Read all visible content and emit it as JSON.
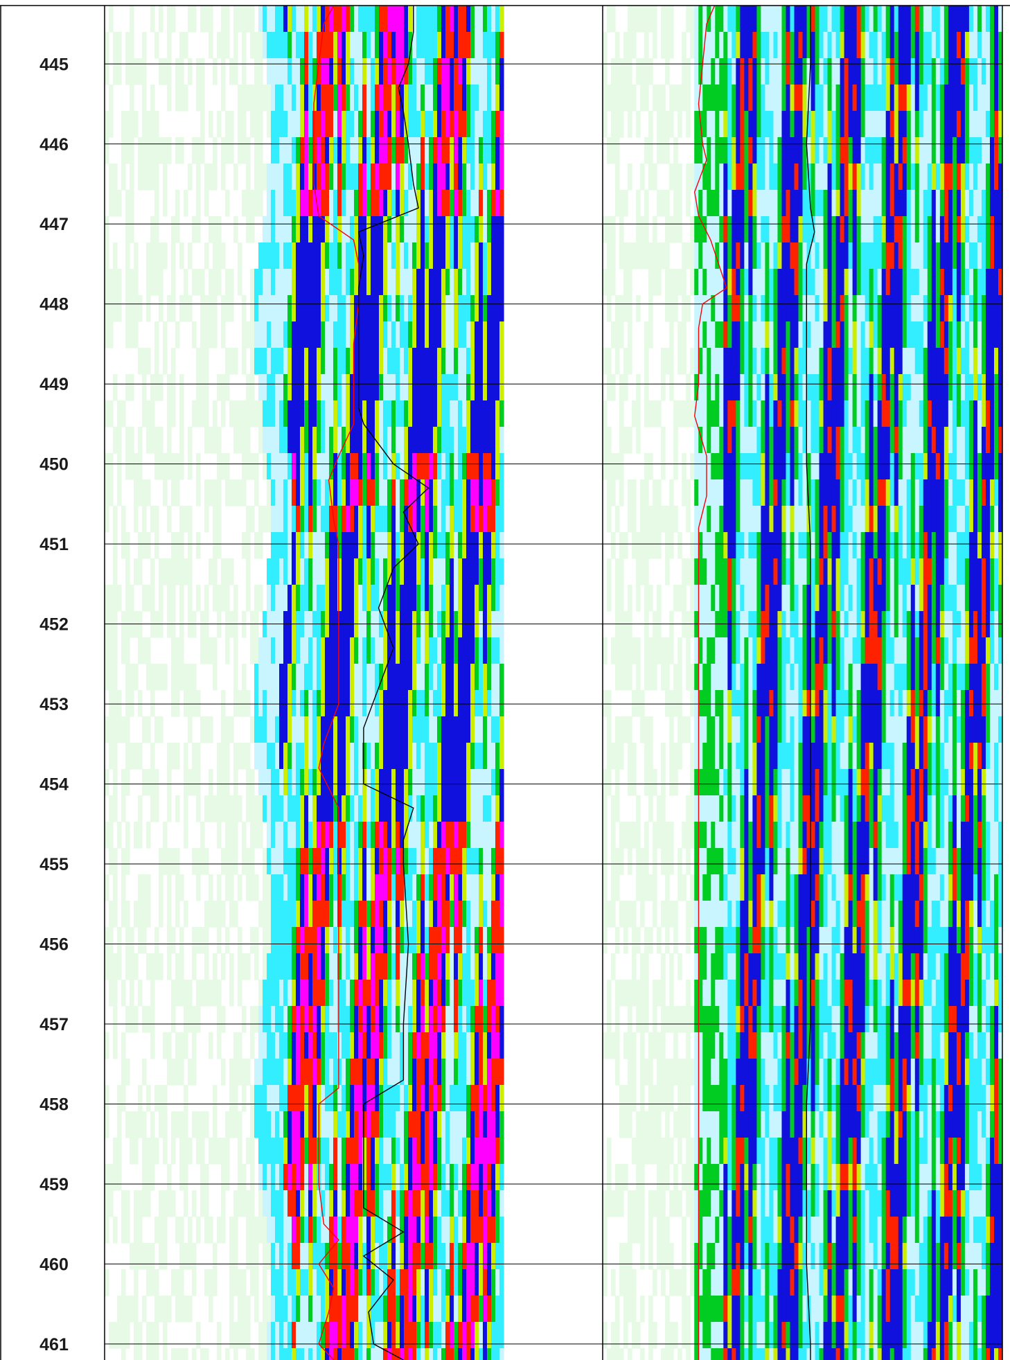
{
  "chart_data": {
    "type": "heatmap",
    "title": "",
    "xlabel": "",
    "ylabel": "",
    "depth_axis": {
      "range": [
        444.27,
        461.2
      ],
      "ticks": [
        445,
        446,
        447,
        448,
        449,
        450,
        451,
        452,
        453,
        454,
        455,
        456,
        457,
        458,
        459,
        460,
        461
      ],
      "tick_labels": [
        "445",
        "446",
        "447",
        "448",
        "449",
        "450",
        "451",
        "452",
        "453",
        "454",
        "455",
        "456",
        "457",
        "458",
        "459",
        "460",
        "461"
      ],
      "grid": true
    },
    "tracks": [
      {
        "name": "",
        "palette": [
          "#e6fae6",
          "#c8f5ff",
          "#33eeff",
          "#00cc22",
          "#ccee00",
          "#ff2200",
          "#ff00ff",
          "#1111dd"
        ],
        "curves": [
          {
            "color": "#ff0000",
            "points": [
              [
                444.27,
                0.46
              ],
              [
                444.5,
                0.44
              ],
              [
                445.0,
                0.43
              ],
              [
                445.5,
                0.42
              ],
              [
                446.0,
                0.42
              ],
              [
                446.5,
                0.42
              ],
              [
                446.9,
                0.43
              ],
              [
                447.2,
                0.5
              ],
              [
                447.5,
                0.51
              ],
              [
                448.0,
                0.51
              ],
              [
                448.5,
                0.5
              ],
              [
                449.0,
                0.5
              ],
              [
                449.5,
                0.5
              ],
              [
                449.9,
                0.47
              ],
              [
                450.2,
                0.45
              ],
              [
                450.7,
                0.46
              ],
              [
                451.0,
                0.47
              ],
              [
                451.5,
                0.47
              ],
              [
                452.0,
                0.47
              ],
              [
                452.5,
                0.47
              ],
              [
                453.0,
                0.47
              ],
              [
                453.5,
                0.44
              ],
              [
                453.8,
                0.43
              ],
              [
                454.3,
                0.47
              ],
              [
                455.0,
                0.47
              ],
              [
                456.0,
                0.47
              ],
              [
                457.0,
                0.47
              ],
              [
                457.8,
                0.47
              ],
              [
                458.0,
                0.43
              ],
              [
                458.5,
                0.43
              ],
              [
                459.0,
                0.43
              ],
              [
                459.5,
                0.44
              ],
              [
                459.7,
                0.47
              ],
              [
                460.0,
                0.43
              ],
              [
                460.3,
                0.46
              ],
              [
                460.6,
                0.45
              ],
              [
                461.0,
                0.43
              ],
              [
                461.2,
                0.46
              ]
            ]
          },
          {
            "color": "#000000",
            "points": [
              [
                444.27,
                0.62
              ],
              [
                444.6,
                0.62
              ],
              [
                445.0,
                0.61
              ],
              [
                445.3,
                0.59
              ],
              [
                445.6,
                0.6
              ],
              [
                446.0,
                0.61
              ],
              [
                446.5,
                0.62
              ],
              [
                446.8,
                0.63
              ],
              [
                447.1,
                0.51
              ],
              [
                447.4,
                0.52
              ],
              [
                447.8,
                0.51
              ],
              [
                448.8,
                0.51
              ],
              [
                449.3,
                0.51
              ],
              [
                449.5,
                0.52
              ],
              [
                450.0,
                0.58
              ],
              [
                450.3,
                0.65
              ],
              [
                450.6,
                0.6
              ],
              [
                451.0,
                0.63
              ],
              [
                451.3,
                0.58
              ],
              [
                451.8,
                0.55
              ],
              [
                452.3,
                0.58
              ],
              [
                452.8,
                0.55
              ],
              [
                453.3,
                0.52
              ],
              [
                453.7,
                0.52
              ],
              [
                454.0,
                0.52
              ],
              [
                454.3,
                0.62
              ],
              [
                454.7,
                0.6
              ],
              [
                455.0,
                0.6
              ],
              [
                456.0,
                0.61
              ],
              [
                457.0,
                0.6
              ],
              [
                457.7,
                0.6
              ],
              [
                458.0,
                0.52
              ],
              [
                458.5,
                0.52
              ],
              [
                459.0,
                0.52
              ],
              [
                459.3,
                0.52
              ],
              [
                459.6,
                0.6
              ],
              [
                459.9,
                0.52
              ],
              [
                460.2,
                0.58
              ],
              [
                460.6,
                0.53
              ],
              [
                461.0,
                0.54
              ],
              [
                461.2,
                0.6
              ]
            ]
          }
        ]
      },
      {
        "name": "",
        "palette": [
          "#e6fae6",
          "#c8f5ff",
          "#33eeff",
          "#00cc22",
          "#ccee00",
          "#ff2200",
          "#ff00ff",
          "#1111dd"
        ],
        "curves": [
          {
            "color": "#ff0000",
            "points": [
              [
                444.27,
                0.28
              ],
              [
                444.5,
                0.26
              ],
              [
                445.0,
                0.25
              ],
              [
                445.5,
                0.24
              ],
              [
                446.0,
                0.25
              ],
              [
                446.2,
                0.26
              ],
              [
                446.6,
                0.23
              ],
              [
                446.9,
                0.24
              ],
              [
                447.2,
                0.27
              ],
              [
                447.8,
                0.31
              ],
              [
                448.0,
                0.25
              ],
              [
                448.3,
                0.24
              ],
              [
                449.0,
                0.24
              ],
              [
                449.4,
                0.23
              ],
              [
                449.9,
                0.26
              ],
              [
                450.4,
                0.26
              ],
              [
                450.8,
                0.24
              ],
              [
                451.0,
                0.24
              ],
              [
                452.0,
                0.24
              ],
              [
                453.0,
                0.24
              ],
              [
                454.0,
                0.24
              ],
              [
                455.0,
                0.24
              ],
              [
                456.0,
                0.24
              ],
              [
                457.0,
                0.24
              ],
              [
                458.0,
                0.24
              ],
              [
                459.0,
                0.24
              ],
              [
                460.0,
                0.24
              ],
              [
                461.0,
                0.24
              ],
              [
                461.2,
                0.24
              ]
            ]
          },
          {
            "color": "#000000",
            "points": [
              [
                444.27,
                0.52
              ],
              [
                445.0,
                0.52
              ],
              [
                446.0,
                0.51
              ],
              [
                446.8,
                0.52
              ],
              [
                447.1,
                0.53
              ],
              [
                447.5,
                0.51
              ],
              [
                448.1,
                0.51
              ],
              [
                449.0,
                0.51
              ],
              [
                450.0,
                0.51
              ],
              [
                451.0,
                0.52
              ],
              [
                452.0,
                0.52
              ],
              [
                453.0,
                0.52
              ],
              [
                454.0,
                0.52
              ],
              [
                455.0,
                0.52
              ],
              [
                456.0,
                0.52
              ],
              [
                457.0,
                0.52
              ],
              [
                458.0,
                0.51
              ],
              [
                459.0,
                0.51
              ],
              [
                460.0,
                0.51
              ],
              [
                461.0,
                0.52
              ],
              [
                461.2,
                0.52
              ]
            ]
          }
        ]
      }
    ]
  }
}
